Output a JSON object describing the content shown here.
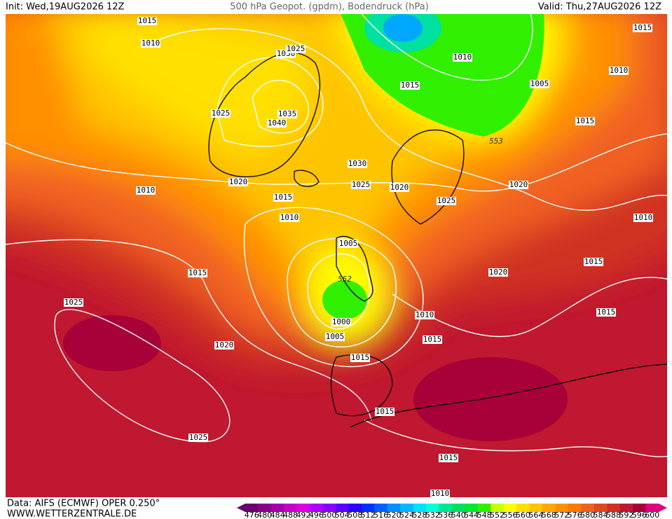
{
  "header": {
    "init": "Init: Wed,19AUG2026 12Z",
    "title": "500 hPa Geopot. (gpdm), Bodendruck (hPa)",
    "valid": "Valid: Thu,27AUG2026 12Z"
  },
  "footer": {
    "data": "Data: AIFS (ECMWF) OPER 0.250°",
    "site": "WWW.WETTERZENTRALE.DE"
  },
  "colorbar": {
    "labels": [
      476,
      480,
      484,
      488,
      492,
      496,
      500,
      504,
      508,
      512,
      516,
      520,
      524,
      528,
      532,
      536,
      540,
      544,
      548,
      552,
      556,
      560,
      564,
      568,
      572,
      576,
      580,
      584,
      588,
      592,
      596,
      600
    ],
    "colors": [
      "#6a0070",
      "#8a008a",
      "#a800a8",
      "#c800c8",
      "#e000e0",
      "#b000ff",
      "#8a00ff",
      "#5a00ff",
      "#2a00ff",
      "#0030ff",
      "#0060ff",
      "#0090ff",
      "#00b8ff",
      "#00e0ff",
      "#00ffd8",
      "#00e890",
      "#00e060",
      "#00e830",
      "#30f000",
      "#c8ff00",
      "#ffff00",
      "#ffe000",
      "#ffc400",
      "#ffa800",
      "#ff9000",
      "#ff7800",
      "#f06020",
      "#e04820",
      "#d03020",
      "#c01830",
      "#a80038",
      "#e00080"
    ]
  },
  "isobar_labels": [
    "1015",
    "1010",
    "1030",
    "1025",
    "1025",
    "1035",
    "1040",
    "1010",
    "1015",
    "1005",
    "1010",
    "1015",
    "1015",
    "553",
    "1030",
    "1025",
    "1020",
    "1020",
    "1010",
    "1015",
    "1025",
    "1020",
    "1010",
    "1010",
    "1005",
    "1015",
    "1020",
    "552",
    "1015",
    "1025",
    "1015",
    "1000",
    "1010",
    "1005",
    "1015",
    "1020",
    "1015",
    "1015",
    "1025",
    "1015",
    "1010"
  ]
}
